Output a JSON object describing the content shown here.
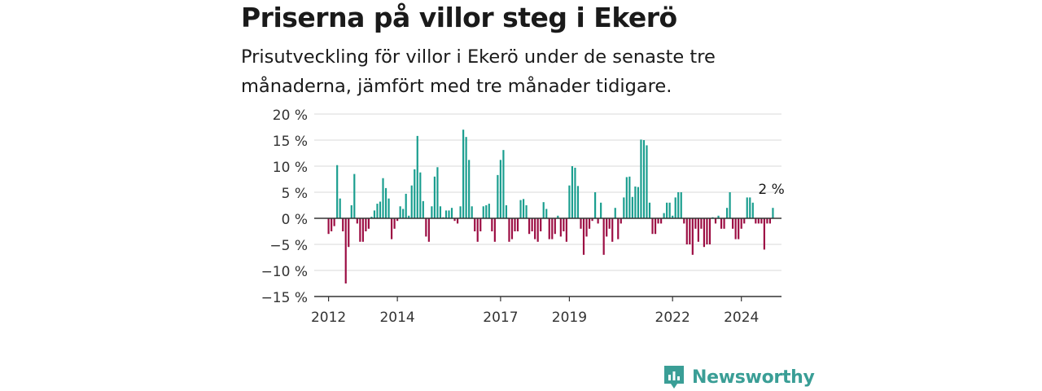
{
  "title": "Priserna på villor steg i Ekerö",
  "subtitle": "Prisutveckling för villor i Ekerö under de senaste tre månaderna, jämfört med tre månader tidigare.",
  "brand": "Newsworthy",
  "colors": {
    "positive": "#1a9e8f",
    "negative": "#9c0d43",
    "grid": "#d9d9d9",
    "axis": "#333333",
    "brand": "#3a9e96"
  },
  "chart_data": {
    "type": "bar",
    "title": "Priserna på villor steg i Ekerö",
    "subtitle": "Prisutveckling för villor i Ekerö under de senaste tre månaderna, jämfört med tre månader tidigare.",
    "xlabel": "",
    "ylabel": "",
    "ylim": [
      -15,
      20
    ],
    "yticks": [
      20,
      15,
      10,
      5,
      0,
      -5,
      -10,
      -15
    ],
    "ytick_labels": [
      "20 %",
      "15 %",
      "10 %",
      "5 %",
      "0 %",
      "−5 %",
      "−10 %",
      "−15 %"
    ],
    "xlim": [
      "2011-08",
      "2025-03"
    ],
    "xticks": [
      "2012-01",
      "2014-01",
      "2017-01",
      "2019-01",
      "2022-01",
      "2024-01"
    ],
    "xtick_labels": [
      "2012",
      "2014",
      "2017",
      "2019",
      "2022",
      "2024"
    ],
    "grid": true,
    "annotation": {
      "x": "2024-12",
      "label": "2 %"
    },
    "series": [
      {
        "x": [
          "2012-01",
          "2012-02",
          "2012-03",
          "2012-04",
          "2012-05",
          "2012-06",
          "2012-07",
          "2012-08",
          "2012-09",
          "2012-10",
          "2012-11",
          "2012-12",
          "2013-01",
          "2013-02",
          "2013-03",
          "2013-04",
          "2013-05",
          "2013-06",
          "2013-07",
          "2013-08",
          "2013-09",
          "2013-10",
          "2013-11",
          "2013-12",
          "2014-01",
          "2014-02",
          "2014-03",
          "2014-04",
          "2014-05",
          "2014-06",
          "2014-07",
          "2014-08",
          "2014-09",
          "2014-10",
          "2014-11",
          "2014-12",
          "2015-01",
          "2015-02",
          "2015-03",
          "2015-04",
          "2015-05",
          "2015-06",
          "2015-07",
          "2015-08",
          "2015-09",
          "2015-10",
          "2015-11",
          "2015-12",
          "2016-01",
          "2016-02",
          "2016-03",
          "2016-04",
          "2016-05",
          "2016-06",
          "2016-07",
          "2016-08",
          "2016-09",
          "2016-10",
          "2016-11",
          "2016-12",
          "2017-01",
          "2017-02",
          "2017-03",
          "2017-04",
          "2017-05",
          "2017-06",
          "2017-07",
          "2017-08",
          "2017-09",
          "2017-10",
          "2017-11",
          "2017-12",
          "2018-01",
          "2018-02",
          "2018-03",
          "2018-04",
          "2018-05",
          "2018-06",
          "2018-07",
          "2018-08",
          "2018-09",
          "2018-10",
          "2018-11",
          "2018-12",
          "2019-01",
          "2019-02",
          "2019-03",
          "2019-04",
          "2019-05",
          "2019-06",
          "2019-07",
          "2019-08",
          "2019-09",
          "2019-10",
          "2019-11",
          "2019-12",
          "2020-01",
          "2020-02",
          "2020-03",
          "2020-04",
          "2020-05",
          "2020-06",
          "2020-07",
          "2020-08",
          "2020-09",
          "2020-10",
          "2020-11",
          "2020-12",
          "2021-01",
          "2021-02",
          "2021-03",
          "2021-04",
          "2021-05",
          "2021-06",
          "2021-07",
          "2021-08",
          "2021-09",
          "2021-10",
          "2021-11",
          "2021-12",
          "2022-01",
          "2022-02",
          "2022-03",
          "2022-04",
          "2022-05",
          "2022-06",
          "2022-07",
          "2022-08",
          "2022-09",
          "2022-10",
          "2022-11",
          "2022-12",
          "2023-01",
          "2023-02",
          "2023-03",
          "2023-04",
          "2023-05",
          "2023-06",
          "2023-07",
          "2023-08",
          "2023-09",
          "2023-10",
          "2023-11",
          "2023-12",
          "2024-01",
          "2024-02",
          "2024-03",
          "2024-04",
          "2024-05",
          "2024-06",
          "2024-07",
          "2024-08",
          "2024-09",
          "2024-10",
          "2024-11",
          "2024-12"
        ],
        "values": [
          -3,
          -2.5,
          -1.5,
          10.2,
          3.8,
          -2.5,
          -12.5,
          -5.5,
          2.5,
          8.5,
          -1,
          -4.5,
          -4.5,
          -2.5,
          -2,
          0.3,
          1.5,
          2.8,
          3.2,
          7.7,
          5.8,
          3.8,
          -4,
          -2,
          -0.5,
          2.3,
          1.8,
          4.7,
          0.5,
          6.3,
          9.4,
          15.8,
          8.8,
          3.3,
          -3.5,
          -4.5,
          2.3,
          8,
          9.8,
          2.3,
          0.2,
          1.5,
          1.5,
          2,
          -0.5,
          -1,
          2.3,
          17,
          15.6,
          11.2,
          2.3,
          -2.5,
          -4.5,
          -2.5,
          2.3,
          2.5,
          2.8,
          -2.5,
          -4.5,
          8.3,
          11.2,
          13.1,
          2.5,
          -4.5,
          -4,
          -2.5,
          -2.5,
          3.5,
          3.7,
          2.5,
          -3,
          -2.5,
          -4,
          -4.5,
          -2.5,
          3.1,
          1.8,
          -4,
          -4,
          -3,
          0.5,
          -3.5,
          -2.5,
          -4.5,
          6.3,
          10,
          9.7,
          6.2,
          -2,
          -7,
          -3.5,
          -2,
          -0.5,
          5,
          -1,
          3,
          -7,
          -3.5,
          -2,
          -4.5,
          2,
          -4,
          -1,
          4,
          7.9,
          8,
          4.1,
          6.1,
          6,
          15.1,
          15,
          14,
          3,
          -3,
          -3,
          -1,
          -1,
          1,
          3,
          3,
          0.5,
          4,
          5,
          5,
          -1,
          -5,
          -5,
          -7,
          -2,
          -4.5,
          -2,
          -5.5,
          -5,
          -5,
          0.2,
          -1,
          0.5,
          -2,
          -2,
          2,
          5,
          -2,
          -4,
          -4,
          -2,
          -1,
          4,
          4,
          3,
          -1,
          -1,
          -1,
          -6,
          -1,
          -1,
          2
        ]
      }
    ]
  }
}
